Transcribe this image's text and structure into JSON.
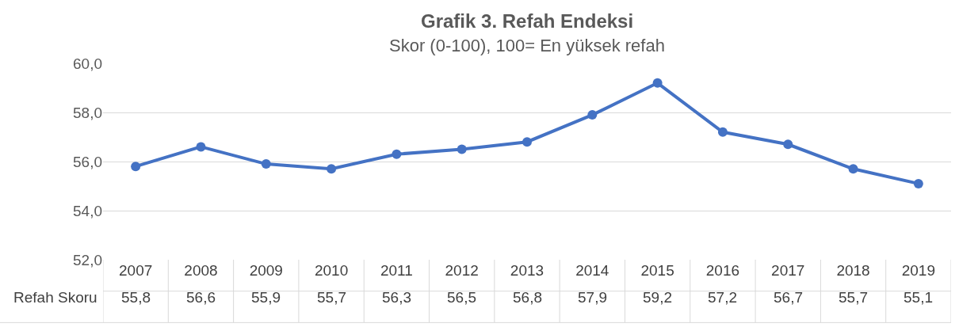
{
  "chart_data": {
    "type": "line",
    "title": "Grafik 3. Refah Endeksi",
    "subtitle": "Skor (0-100), 100= En yüksek refah",
    "categories": [
      "2007",
      "2008",
      "2009",
      "2010",
      "2011",
      "2012",
      "2013",
      "2014",
      "2015",
      "2016",
      "2017",
      "2018",
      "2019"
    ],
    "series": [
      {
        "name": "Refah Skoru",
        "color": "#4472c4",
        "values": [
          55.8,
          56.6,
          55.9,
          55.7,
          56.3,
          56.5,
          56.8,
          57.9,
          59.2,
          57.2,
          56.7,
          55.7,
          55.1
        ],
        "value_labels": [
          "55,8",
          "56,6",
          "55,9",
          "55,7",
          "56,3",
          "56,5",
          "56,8",
          "57,9",
          "59,2",
          "57,2",
          "56,7",
          "55,7",
          "55,1"
        ]
      }
    ],
    "ylim": [
      52,
      60
    ],
    "yticks": [
      {
        "value": 52,
        "label": "52,0"
      },
      {
        "value": 54,
        "label": "54,0"
      },
      {
        "value": 56,
        "label": "56,0"
      },
      {
        "value": 58,
        "label": "58,0"
      },
      {
        "value": 60,
        "label": "60,0"
      }
    ],
    "grid": "y",
    "legend": false,
    "marker": "circle",
    "line_style": "solid"
  }
}
